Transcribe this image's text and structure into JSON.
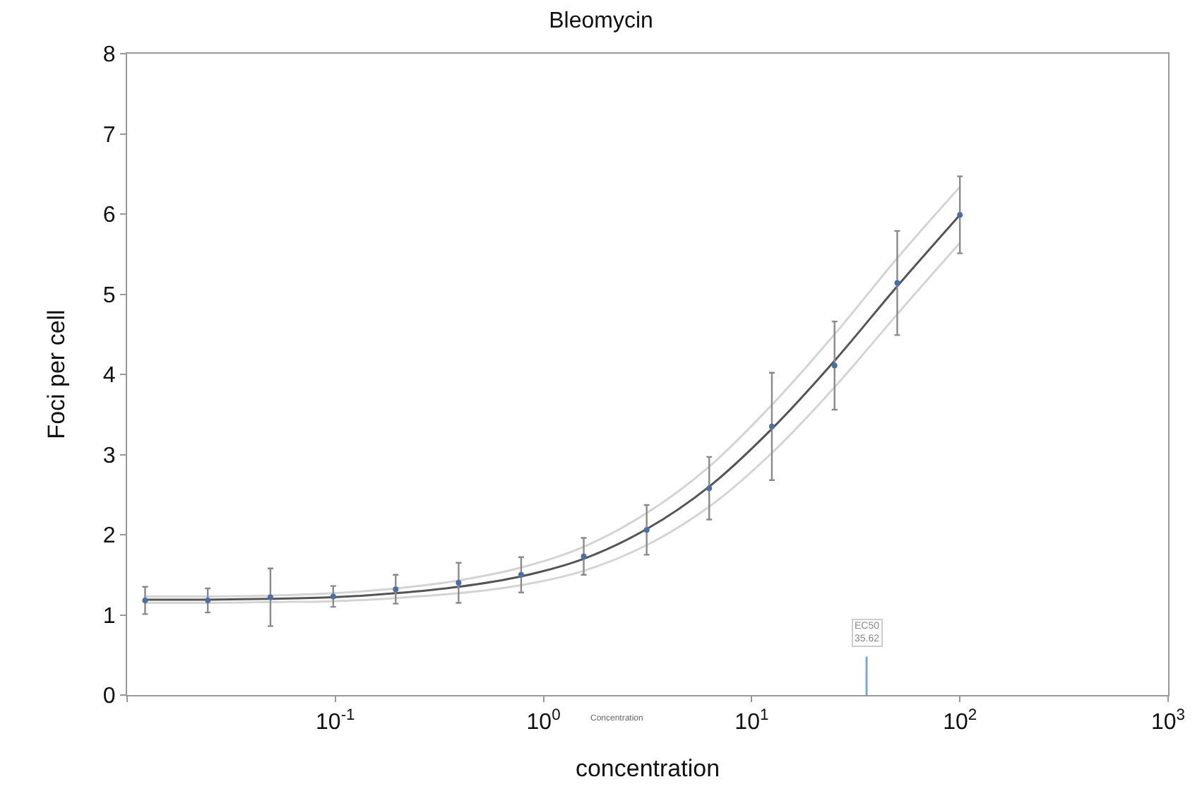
{
  "chart_data": {
    "type": "scatter",
    "title": "Bleomycin",
    "xlabel": "concentration",
    "ylabel": "Foci per cell",
    "log": "x",
    "grid": false,
    "xlim": [
      0.01,
      1000
    ],
    "xticks": [
      {
        "value": 0.01,
        "label": null
      },
      {
        "value": 0.1,
        "label": "10$^{-1}$"
      },
      {
        "value": 1,
        "label": "10$^{0}$"
      },
      {
        "value": 10,
        "label": "10$^{1}$"
      },
      {
        "value": 100,
        "label": "10$^{2}$"
      },
      {
        "value": 1000,
        "label": "10$^{3}$"
      }
    ],
    "ylim": [
      0,
      8
    ],
    "yticks": [
      0,
      1,
      2,
      3,
      4,
      5,
      6,
      7,
      8
    ],
    "x": [
      0.0122,
      0.0244,
      0.0488,
      0.0977,
      0.195,
      0.391,
      0.781,
      1.56,
      3.13,
      6.25,
      12.5,
      25,
      50,
      100
    ],
    "series": [
      {
        "color": "#4a6fa5",
        "marker": "circle",
        "values": [
          1.18,
          1.18,
          1.22,
          1.23,
          1.32,
          1.4,
          1.5,
          1.73,
          2.06,
          2.58,
          3.35,
          4.11,
          5.14,
          5.99
        ],
        "errors": [
          0.17,
          0.15,
          0.36,
          0.13,
          0.18,
          0.25,
          0.22,
          0.23,
          0.31,
          0.39,
          0.67,
          0.55,
          0.65,
          0.48
        ]
      },
      {
        "type": "line",
        "color": "#d4d4d4",
        "values": [
          1.15,
          1.15,
          1.16,
          1.17,
          1.21,
          1.27,
          1.37,
          1.55,
          1.87,
          2.35,
          3.02,
          3.84,
          4.75,
          5.64
        ]
      },
      {
        "type": "line",
        "color": "#d4d4d4",
        "values": [
          1.23,
          1.23,
          1.24,
          1.27,
          1.33,
          1.43,
          1.59,
          1.85,
          2.27,
          2.85,
          3.62,
          4.5,
          5.45,
          6.34
        ]
      },
      {
        "type": "line",
        "color": "#555555",
        "values": [
          1.19,
          1.19,
          1.2,
          1.22,
          1.27,
          1.35,
          1.48,
          1.7,
          2.07,
          2.6,
          3.32,
          4.17,
          5.1,
          5.99
        ]
      }
    ],
    "ref_lines": [
      {
        "axis": "x",
        "value": 35.62,
        "label": "EC50\n35.62",
        "color": "#7aa6dc"
      }
    ],
    "annotations": [
      "Concentration"
    ]
  }
}
